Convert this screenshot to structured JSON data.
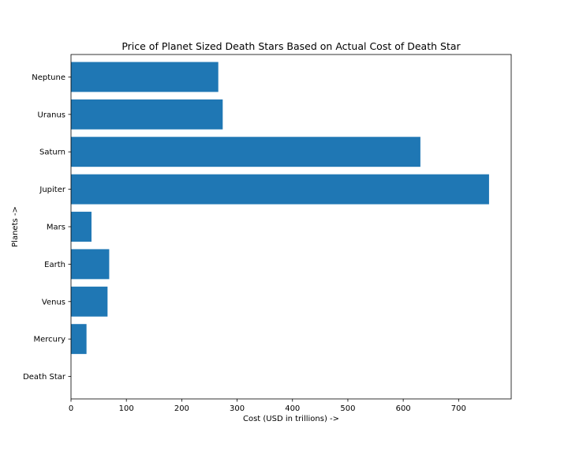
{
  "chart_data": {
    "type": "bar",
    "orientation": "horizontal",
    "title": "Price of Planet Sized Death Stars Based on Actual Cost of Death Star",
    "xlabel": "Cost (USD in trillions) ->",
    "ylabel": "Planets ->",
    "categories": [
      "Death Star",
      "Mercury",
      "Venus",
      "Earth",
      "Mars",
      "Jupiter",
      "Saturn",
      "Uranus",
      "Neptune"
    ],
    "values": [
      0.0,
      28,
      66,
      69,
      37,
      755,
      631,
      274,
      266
    ],
    "xlim": [
      0,
      795
    ],
    "xticks": [
      0,
      100,
      200,
      300,
      400,
      500,
      600,
      700
    ],
    "grid": false,
    "bar_color": "#1f77b4"
  }
}
